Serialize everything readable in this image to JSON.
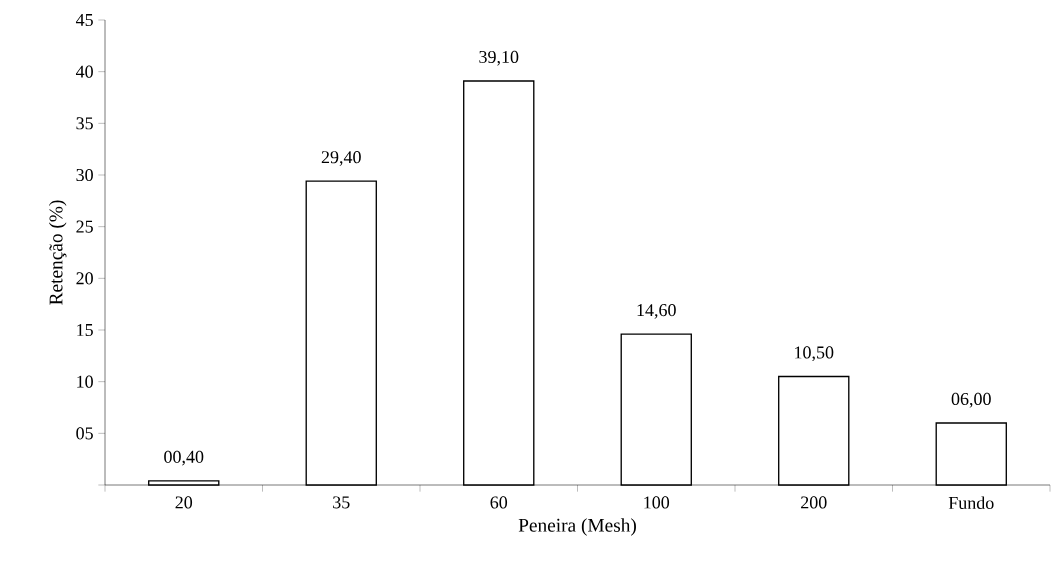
{
  "chart_data": {
    "type": "bar",
    "xlabel": "Peneira (Mesh)",
    "ylabel": "Retenção (%)",
    "categories": [
      "20",
      "35",
      "60",
      "100",
      "200",
      "Fundo"
    ],
    "values": [
      0.4,
      29.4,
      39.1,
      14.6,
      10.5,
      6.0
    ],
    "value_labels": [
      "00,40",
      "29,40",
      "39,10",
      "14,60",
      "10,50",
      "06,00"
    ],
    "color": "#ffffff",
    "ylim": [
      0,
      45
    ],
    "yticks": [
      {
        "value": 0,
        "label": null
      },
      {
        "value": 5,
        "label": "05"
      },
      10,
      15,
      20,
      25,
      30,
      35,
      40,
      45
    ],
    "grid": false
  }
}
